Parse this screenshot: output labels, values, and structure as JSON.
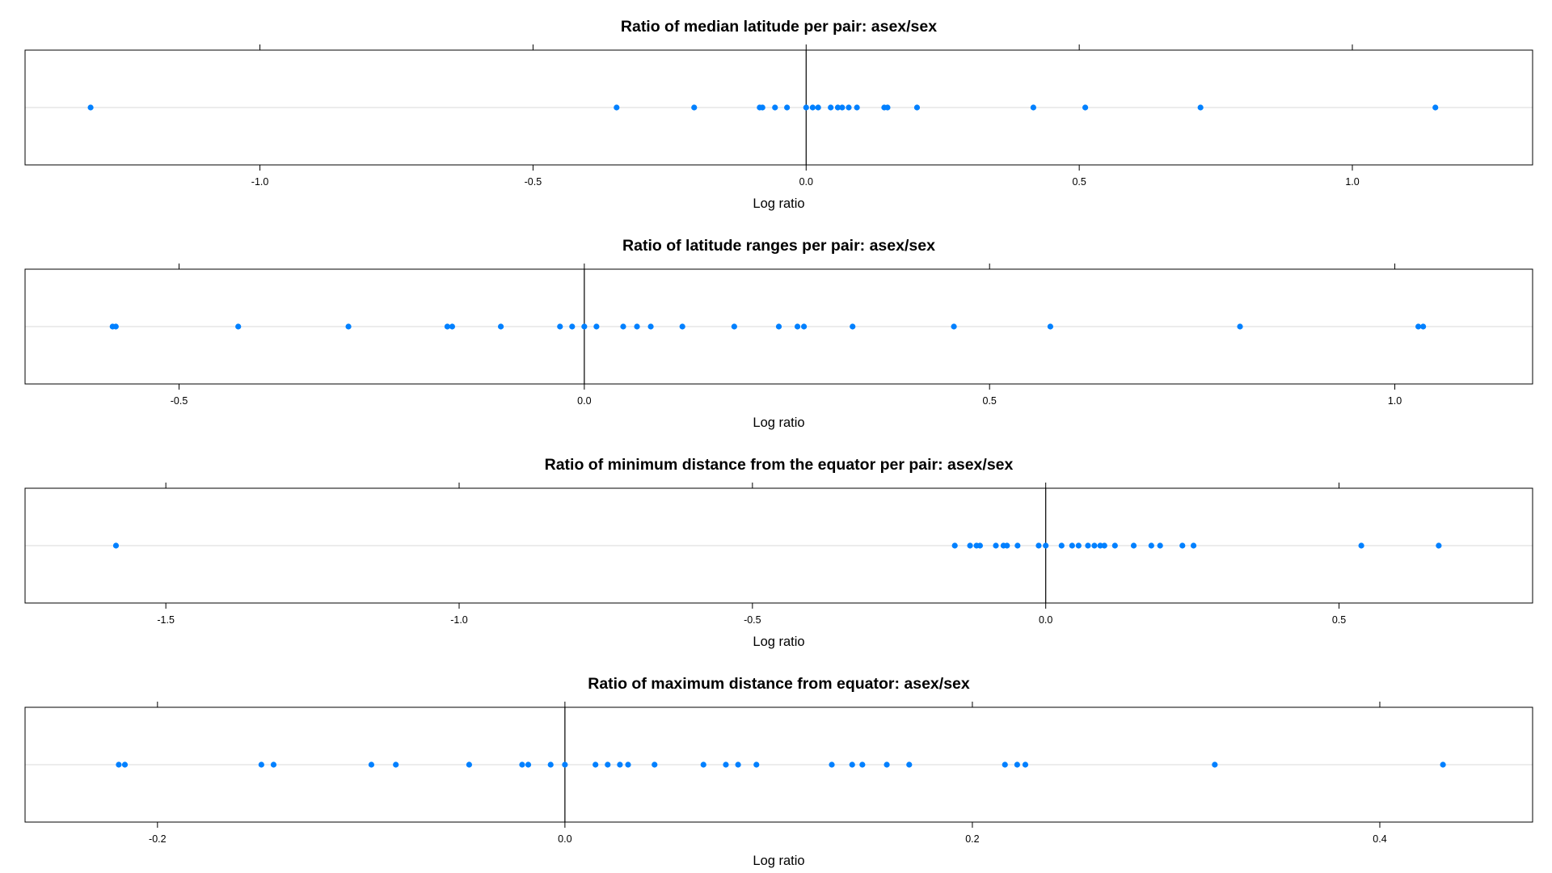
{
  "chart_data": [
    {
      "type": "scatter",
      "title": "Ratio of median latitude per pair: asex/sex",
      "xlabel": "Log ratio",
      "ylabel": "",
      "xlim": [
        -1.43,
        1.33
      ],
      "xticks": [
        -1.0,
        -0.5,
        0.0,
        0.5,
        1.0
      ],
      "xtick_labels": [
        "-1.0",
        "-0.5",
        "0.0",
        "0.5",
        "1.0"
      ],
      "reference_line": 0,
      "grid": false,
      "point_color": "#0080ff",
      "values": [
        -1.31,
        -0.347,
        -0.205,
        -0.085,
        -0.08,
        -0.057,
        -0.035,
        0.0,
        0.012,
        0.022,
        0.045,
        0.058,
        0.066,
        0.078,
        0.093,
        0.143,
        0.149,
        0.203,
        0.416,
        0.511,
        0.722,
        1.152
      ]
    },
    {
      "type": "scatter",
      "title": "Ratio of latitude ranges per pair: asex/sex",
      "xlabel": "Log ratio",
      "ylabel": "",
      "xlim": [
        -0.69,
        1.17
      ],
      "xticks": [
        -0.5,
        0.0,
        0.5,
        1.0
      ],
      "xtick_labels": [
        "-0.5",
        "0.0",
        "0.5",
        "1.0"
      ],
      "reference_line": 0,
      "grid": false,
      "point_color": "#0080ff",
      "values": [
        -0.582,
        -0.578,
        -0.427,
        -0.291,
        -0.169,
        -0.163,
        -0.103,
        -0.03,
        -0.015,
        0.0,
        0.015,
        0.048,
        0.065,
        0.082,
        0.121,
        0.185,
        0.24,
        0.263,
        0.271,
        0.331,
        0.456,
        0.575,
        0.809,
        1.029,
        1.035
      ]
    },
    {
      "type": "scatter",
      "title": "Ratio of minimum distance from the equator per pair: asex/sex",
      "xlabel": "Log ratio",
      "ylabel": "",
      "xlim": [
        -1.74,
        0.83
      ],
      "xticks": [
        -1.5,
        -1.0,
        -0.5,
        0.0,
        0.5
      ],
      "xtick_labels": [
        "-1.5",
        "-1.0",
        "-0.5",
        "0.0",
        "0.5"
      ],
      "reference_line": 0,
      "grid": false,
      "point_color": "#0080ff",
      "values": [
        -1.585,
        -0.155,
        -0.129,
        -0.118,
        -0.112,
        -0.085,
        -0.072,
        -0.066,
        -0.048,
        -0.012,
        0.0,
        0.027,
        0.045,
        0.056,
        0.072,
        0.083,
        0.093,
        0.1,
        0.118,
        0.15,
        0.18,
        0.195,
        0.233,
        0.252,
        0.538,
        0.67
      ]
    },
    {
      "type": "scatter",
      "title": "Ratio of maximum distance from equator: asex/sex",
      "xlabel": "Log ratio",
      "ylabel": "",
      "xlim": [
        -0.265,
        0.475
      ],
      "xticks": [
        -0.2,
        0.0,
        0.2,
        0.4
      ],
      "xtick_labels": [
        "-0.2",
        "0.0",
        "0.2",
        "0.4"
      ],
      "reference_line": 0,
      "grid": false,
      "point_color": "#0080ff",
      "values": [
        -0.219,
        -0.216,
        -0.149,
        -0.143,
        -0.095,
        -0.083,
        -0.047,
        -0.021,
        -0.018,
        -0.007,
        0.0,
        0.015,
        0.021,
        0.027,
        0.031,
        0.044,
        0.068,
        0.079,
        0.085,
        0.094,
        0.131,
        0.141,
        0.146,
        0.158,
        0.169,
        0.216,
        0.222,
        0.226,
        0.319,
        0.431
      ]
    }
  ]
}
